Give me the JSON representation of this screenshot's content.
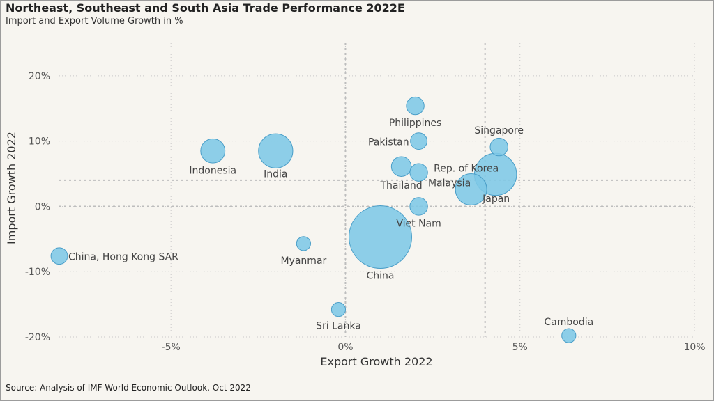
{
  "title": "Northeast, Southeast and South Asia Trade Performance 2022E",
  "subtitle": "Import and Export Volume Growth in %",
  "source": "Source: Analysis of IMF World Economic Outlook, Oct 2022",
  "colors": {
    "bubble_fill": "#7ec8e6",
    "bubble_stroke": "#4a9ec8",
    "grid": "#c8c8c8",
    "text": "#444444"
  },
  "chart_data": {
    "type": "scatter",
    "xlabel": "Export Growth 2022",
    "ylabel": "Import Growth 2022",
    "xlim": [
      -8.2,
      10
    ],
    "ylim": [
      -20,
      25
    ],
    "x_ticks": [
      -5,
      0,
      5,
      10
    ],
    "x_tick_labels": [
      "-5%",
      "0%",
      "5%",
      "10%"
    ],
    "y_ticks": [
      20,
      10,
      0,
      -10,
      -20
    ],
    "y_tick_labels": [
      "20%",
      "10%",
      "0%",
      "-10%",
      "-20%"
    ],
    "reference_lines": {
      "x": [
        0,
        4
      ],
      "y": [
        4,
        0
      ]
    },
    "points": [
      {
        "name": "China",
        "x": 1.0,
        "y": -4.7,
        "size": 10.0
      },
      {
        "name": "Japan",
        "x": 3.6,
        "y": 2.6,
        "size": 2.5
      },
      {
        "name": "Rep. of Korea",
        "x": 4.3,
        "y": 4.9,
        "size": 4.5
      },
      {
        "name": "India",
        "x": -2.0,
        "y": 8.5,
        "size": 3.0
      },
      {
        "name": "Indonesia",
        "x": -3.8,
        "y": 8.5,
        "size": 1.5
      },
      {
        "name": "Thailand",
        "x": 1.6,
        "y": 6.1,
        "size": 1.0
      },
      {
        "name": "Malaysia",
        "x": 2.1,
        "y": 5.2,
        "size": 0.8
      },
      {
        "name": "Philippines",
        "x": 2.0,
        "y": 15.4,
        "size": 0.8
      },
      {
        "name": "Pakistan",
        "x": 2.1,
        "y": 10.0,
        "size": 0.7
      },
      {
        "name": "Singapore",
        "x": 4.4,
        "y": 9.1,
        "size": 0.8
      },
      {
        "name": "Viet Nam",
        "x": 2.1,
        "y": 0.0,
        "size": 0.8
      },
      {
        "name": "China, Hong Kong SAR",
        "x": -8.2,
        "y": -7.6,
        "size": 0.7
      },
      {
        "name": "Myanmar",
        "x": -1.2,
        "y": -5.7,
        "size": 0.5
      },
      {
        "name": "Sri Lanka",
        "x": -0.2,
        "y": -15.8,
        "size": 0.5
      },
      {
        "name": "Cambodia",
        "x": 6.4,
        "y": -19.8,
        "size": 0.5
      }
    ]
  }
}
